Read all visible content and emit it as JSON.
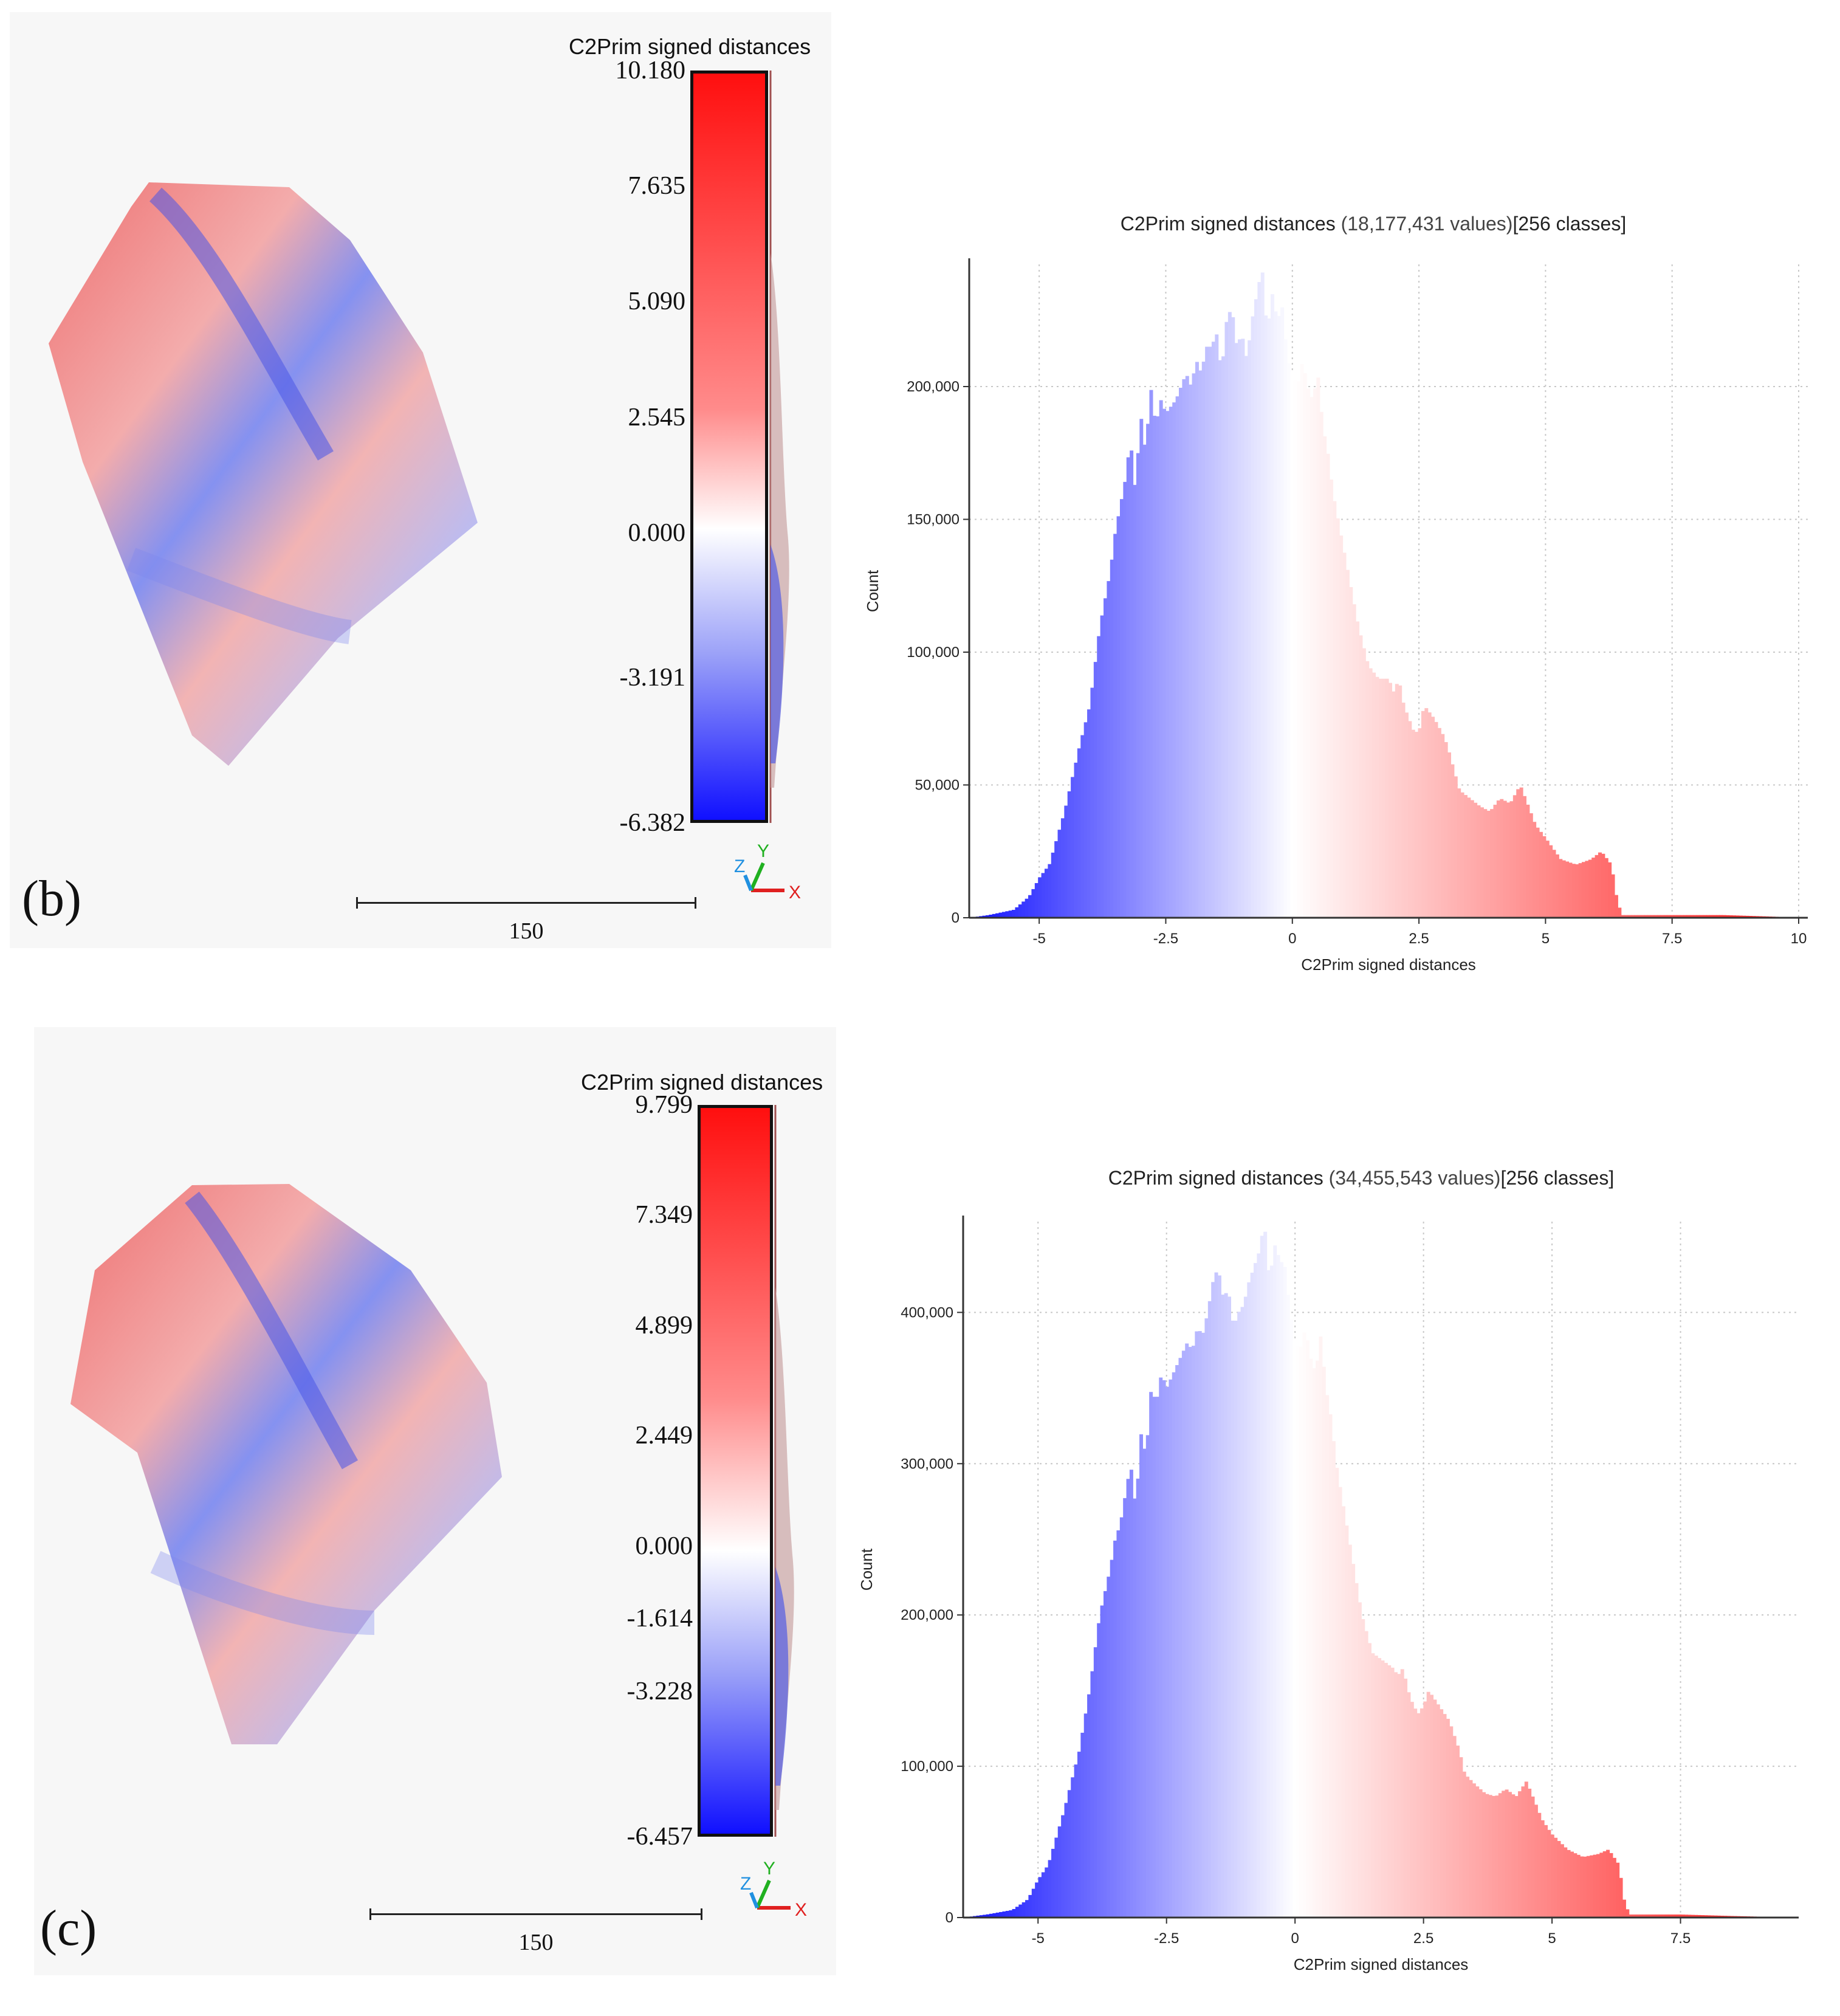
{
  "colors": {
    "blue": "#1010ff",
    "white": "#ffffff",
    "red": "#ff0f0f",
    "background": "#f7f7f7",
    "grid": "#c8c8c8"
  },
  "chart_data": [
    {
      "id": "b",
      "type": "bar",
      "panel_label": "(b)",
      "view_title": "C2Prim signed distances",
      "colorbar_ticks": [
        "10.180",
        "7.635",
        "5.090",
        "2.545",
        "0.000",
        "-3.191",
        "-6.382"
      ],
      "colorbar_tick_values": [
        10.18,
        7.635,
        5.09,
        2.545,
        0.0,
        -3.191,
        -6.382
      ],
      "colorbar_range": [
        -6.382,
        10.18
      ],
      "scale_label": "150",
      "axes_labels": {
        "x": "X",
        "y": "Y",
        "z": "Z"
      },
      "title_prefix": "C2Prim signed distances",
      "title_count": "(18,177,431 values)",
      "title_suffix": "[256 classes]",
      "xlabel": "C2Prim signed distances",
      "ylabel": "Count",
      "xlim": [
        -6.382,
        10.18
      ],
      "ylim": [
        0,
        246000
      ],
      "xticks": [
        -5,
        -2.5,
        0,
        2.5,
        5,
        7.5,
        10
      ],
      "xtick_labels": [
        "-5",
        "-2.5",
        "0",
        "2.5",
        "5",
        "7.5",
        "10"
      ],
      "yticks": [
        0,
        50000,
        100000,
        150000,
        200000
      ],
      "ytick_labels": [
        "0",
        "50,000",
        "100,000",
        "150,000",
        "200,000"
      ],
      "profile_x": [
        -6.382,
        -6,
        -5.5,
        -5.2,
        -5,
        -4.8,
        -4.5,
        -4.2,
        -4,
        -3.8,
        -3.6,
        -3.5,
        -3.4,
        -3.3,
        -3.2,
        -3.1,
        -3,
        -2.9,
        -2.8,
        -2.7,
        -2.6,
        -2.5,
        -2.3,
        -2.1,
        -2.0,
        -1.9,
        -1.8,
        -1.7,
        -1.6,
        -1.5,
        -1.4,
        -1.3,
        -1.2,
        -1.1,
        -1.0,
        -0.9,
        -0.8,
        -0.7,
        -0.6,
        -0.5,
        -0.4,
        -0.3,
        -0.2,
        -0.1,
        0,
        0.1,
        0.2,
        0.3,
        0.4,
        0.5,
        0.6,
        0.7,
        0.8,
        0.9,
        1.0,
        1.1,
        1.2,
        1.3,
        1.5,
        1.7,
        1.9,
        2.0,
        2.1,
        2.2,
        2.3,
        2.4,
        2.5,
        2.6,
        2.8,
        3.0,
        3.1,
        3.2,
        3.3,
        3.5,
        3.7,
        3.9,
        4.1,
        4.3,
        4.5,
        4.6,
        4.8,
        5.0,
        5.3,
        5.6,
        5.9,
        6.1,
        6.3,
        6.4,
        6.5,
        7.5,
        8.5,
        10.18
      ],
      "profile_y": [
        0,
        1000,
        3000,
        8000,
        15000,
        20000,
        40000,
        65000,
        80000,
        110000,
        130000,
        145000,
        155000,
        165000,
        180000,
        160000,
        190000,
        175000,
        200000,
        185000,
        195000,
        190000,
        195000,
        205000,
        200000,
        210000,
        205000,
        215000,
        215000,
        220000,
        205000,
        225000,
        230000,
        215000,
        220000,
        210000,
        225000,
        235000,
        245000,
        220000,
        235000,
        225000,
        230000,
        210000,
        205000,
        200000,
        210000,
        200000,
        195000,
        205000,
        185000,
        175000,
        160000,
        150000,
        140000,
        130000,
        120000,
        110000,
        95000,
        90000,
        90000,
        85000,
        90000,
        80000,
        75000,
        70000,
        70000,
        80000,
        75000,
        68000,
        62000,
        55000,
        48000,
        45000,
        42000,
        40000,
        45000,
        43000,
        50000,
        45000,
        35000,
        30000,
        22000,
        20000,
        22000,
        25000,
        20000,
        8000,
        1000,
        1000,
        1000,
        0
      ]
    },
    {
      "id": "c",
      "type": "bar",
      "panel_label": "(c)",
      "view_title": "C2Prim signed distances",
      "colorbar_ticks": [
        "9.799",
        "7.349",
        "4.899",
        "2.449",
        "0.000",
        "-1.614",
        "-3.228",
        "-6.457"
      ],
      "colorbar_tick_values": [
        9.799,
        7.349,
        4.899,
        2.449,
        0.0,
        -1.614,
        -3.228,
        -6.457
      ],
      "colorbar_range": [
        -6.457,
        9.799
      ],
      "scale_label": "150",
      "axes_labels": {
        "x": "X",
        "y": "Y",
        "z": "Z"
      },
      "title_prefix": "C2Prim signed distances",
      "title_count": "(34,455,543 values)",
      "title_suffix": "[256 classes]",
      "xlabel": "C2Prim signed distances",
      "ylabel": "Count",
      "xlim": [
        -6.457,
        9.799
      ],
      "ylim": [
        0,
        460000
      ],
      "xticks": [
        -5,
        -2.5,
        0,
        2.5,
        5,
        7.5
      ],
      "xtick_labels": [
        "-5",
        "-2.5",
        "0",
        "2.5",
        "5",
        "7.5"
      ],
      "yticks": [
        0,
        100000,
        200000,
        300000,
        400000
      ],
      "ytick_labels": [
        "0",
        "100,000",
        "200,000",
        "300,000",
        "400,000"
      ],
      "profile_x": [
        -6.457,
        -6,
        -5.5,
        -5.2,
        -5,
        -4.8,
        -4.5,
        -4.2,
        -4,
        -3.8,
        -3.6,
        -3.5,
        -3.4,
        -3.3,
        -3.2,
        -3.1,
        -3,
        -2.9,
        -2.8,
        -2.7,
        -2.6,
        -2.5,
        -2.3,
        -2.1,
        -2.0,
        -1.9,
        -1.8,
        -1.7,
        -1.6,
        -1.5,
        -1.4,
        -1.3,
        -1.2,
        -1.1,
        -1.0,
        -0.9,
        -0.8,
        -0.7,
        -0.6,
        -0.5,
        -0.4,
        -0.3,
        -0.2,
        -0.1,
        0,
        0.1,
        0.2,
        0.3,
        0.4,
        0.5,
        0.6,
        0.7,
        0.8,
        0.9,
        1.0,
        1.1,
        1.2,
        1.3,
        1.5,
        1.7,
        1.9,
        2.0,
        2.1,
        2.2,
        2.3,
        2.4,
        2.5,
        2.6,
        2.8,
        3.0,
        3.1,
        3.2,
        3.3,
        3.5,
        3.7,
        3.9,
        4.1,
        4.3,
        4.5,
        4.6,
        4.8,
        5.0,
        5.3,
        5.6,
        5.9,
        6.1,
        6.3,
        6.4,
        6.5,
        7.5,
        8.5,
        9.799
      ],
      "profile_y": [
        0,
        2000,
        5000,
        12000,
        25000,
        35000,
        70000,
        110000,
        150000,
        200000,
        230000,
        250000,
        260000,
        280000,
        300000,
        270000,
        320000,
        305000,
        350000,
        340000,
        360000,
        350000,
        365000,
        380000,
        375000,
        390000,
        385000,
        400000,
        420000,
        430000,
        410000,
        415000,
        390000,
        400000,
        405000,
        420000,
        430000,
        440000,
        460000,
        420000,
        445000,
        435000,
        430000,
        400000,
        380000,
        375000,
        390000,
        370000,
        360000,
        385000,
        350000,
        330000,
        300000,
        280000,
        260000,
        240000,
        220000,
        200000,
        175000,
        170000,
        165000,
        160000,
        165000,
        150000,
        140000,
        135000,
        140000,
        150000,
        140000,
        130000,
        120000,
        110000,
        95000,
        88000,
        82000,
        80000,
        85000,
        80000,
        90000,
        82000,
        65000,
        55000,
        45000,
        40000,
        42000,
        45000,
        35000,
        12000,
        2000,
        2000,
        1000,
        0
      ]
    }
  ]
}
